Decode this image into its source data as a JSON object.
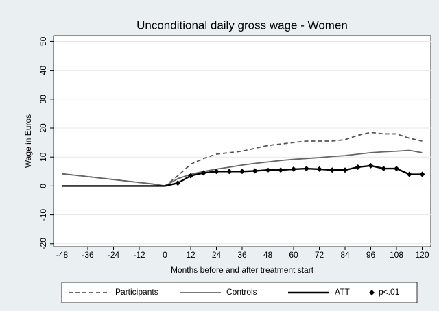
{
  "chart_data": {
    "type": "line",
    "title": "Unconditional daily gross wage - Women",
    "x_label": "Months before and after treatment start",
    "y_label": "Wage in Euros",
    "x": [
      -48,
      -42,
      -36,
      -30,
      -24,
      -18,
      -12,
      -6,
      0,
      6,
      12,
      18,
      24,
      30,
      36,
      42,
      48,
      54,
      60,
      66,
      72,
      78,
      84,
      90,
      96,
      102,
      108,
      114,
      120
    ],
    "series": [
      {
        "name": "Participants",
        "color": "#555555",
        "dash": true,
        "values": [
          4.2,
          3.7,
          3.2,
          2.7,
          2.2,
          1.7,
          1.2,
          0.7,
          0,
          3.5,
          7.5,
          9.5,
          11,
          11.5,
          12,
          13,
          14,
          14.5,
          15,
          15.5,
          15.5,
          15.5,
          16,
          17.5,
          18.5,
          18,
          18,
          16.5,
          15.5
        ]
      },
      {
        "name": "Controls",
        "color": "#666666",
        "dash": false,
        "values": [
          4.2,
          3.7,
          3.2,
          2.7,
          2.2,
          1.7,
          1.2,
          0.7,
          0,
          2.5,
          4,
          5,
          5.8,
          6.5,
          7.2,
          7.8,
          8.3,
          8.8,
          9.2,
          9.5,
          9.8,
          10.2,
          10.5,
          11,
          11.5,
          11.8,
          12,
          12.3,
          11.5
        ]
      },
      {
        "name": "ATT",
        "color": "#000000",
        "dash": false,
        "values": [
          0,
          0,
          0,
          0,
          0,
          0,
          0,
          0,
          0,
          1,
          3.5,
          4.5,
          5,
          5,
          5,
          5.2,
          5.5,
          5.5,
          5.8,
          6,
          5.8,
          5.5,
          5.5,
          6.5,
          7,
          6,
          6,
          4,
          4
        ]
      },
      {
        "name": "p<.01",
        "color": "#000000",
        "marker": "diamond",
        "x": [
          6,
          12,
          18,
          24,
          30,
          36,
          42,
          48,
          54,
          60,
          66,
          72,
          78,
          84,
          90,
          96,
          102,
          108,
          114,
          120
        ],
        "values": [
          1,
          3.5,
          4.5,
          5,
          5,
          5,
          5.2,
          5.5,
          5.5,
          5.8,
          6,
          5.8,
          5.5,
          5.5,
          6.5,
          7,
          6,
          6,
          4,
          4
        ]
      }
    ],
    "xlim": [
      -52,
      124
    ],
    "xticks": [
      -48,
      -36,
      -24,
      -12,
      0,
      12,
      24,
      36,
      48,
      60,
      72,
      84,
      96,
      108,
      120
    ],
    "ylim": [
      -21,
      52
    ],
    "yticks": [
      -20,
      -10,
      0,
      10,
      20,
      30,
      40,
      50
    ],
    "xline": 0,
    "grid": true
  }
}
